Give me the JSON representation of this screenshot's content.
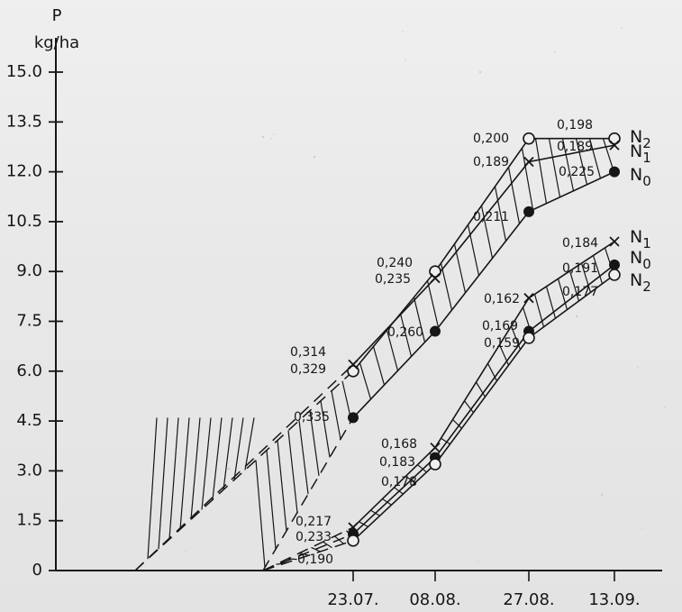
{
  "chart_data": {
    "type": "line",
    "yaxis": {
      "label_line1": "P",
      "label_line2": "kg/ha",
      "ticks": [
        "0",
        "1.5",
        "3.0",
        "4.5",
        "6.0",
        "7.5",
        "9.0",
        "10.5",
        "12.0",
        "13.5",
        "15.0"
      ],
      "ylim": [
        0,
        15.0
      ]
    },
    "xaxis": {
      "categories": [
        "23.07.",
        "08.08.",
        "27.08.",
        "13.09."
      ]
    },
    "groups": [
      {
        "series": [
          {
            "name": "N2",
            "values": [
              6.0,
              9.0,
              13.0,
              13.0
            ]
          },
          {
            "name": "N1",
            "values": [
              6.2,
              8.8,
              12.3,
              12.8
            ]
          },
          {
            "name": "N0",
            "values": [
              4.6,
              7.2,
              10.8,
              12.0
            ]
          }
        ]
      },
      {
        "series": [
          {
            "name": "N1",
            "values": [
              1.3,
              3.7,
              8.2,
              9.9
            ]
          },
          {
            "name": "N0",
            "values": [
              1.1,
              3.4,
              7.2,
              9.2
            ]
          },
          {
            "name": "N2",
            "values": [
              0.9,
              3.2,
              7.0,
              8.9
            ]
          }
        ]
      }
    ],
    "annotations": [
      "0,314",
      "0,329",
      "0,335",
      "0,240",
      "0,235",
      "0,260",
      "0,200",
      "0,189",
      "0,211",
      "0,198",
      "0,189",
      "0,225",
      "0,184",
      "0,191",
      "0,177",
      "0,162",
      "0,169",
      "0,159",
      "0,168",
      "0,183",
      "0,178",
      "0,217",
      "0,233",
      "0,190"
    ]
  }
}
